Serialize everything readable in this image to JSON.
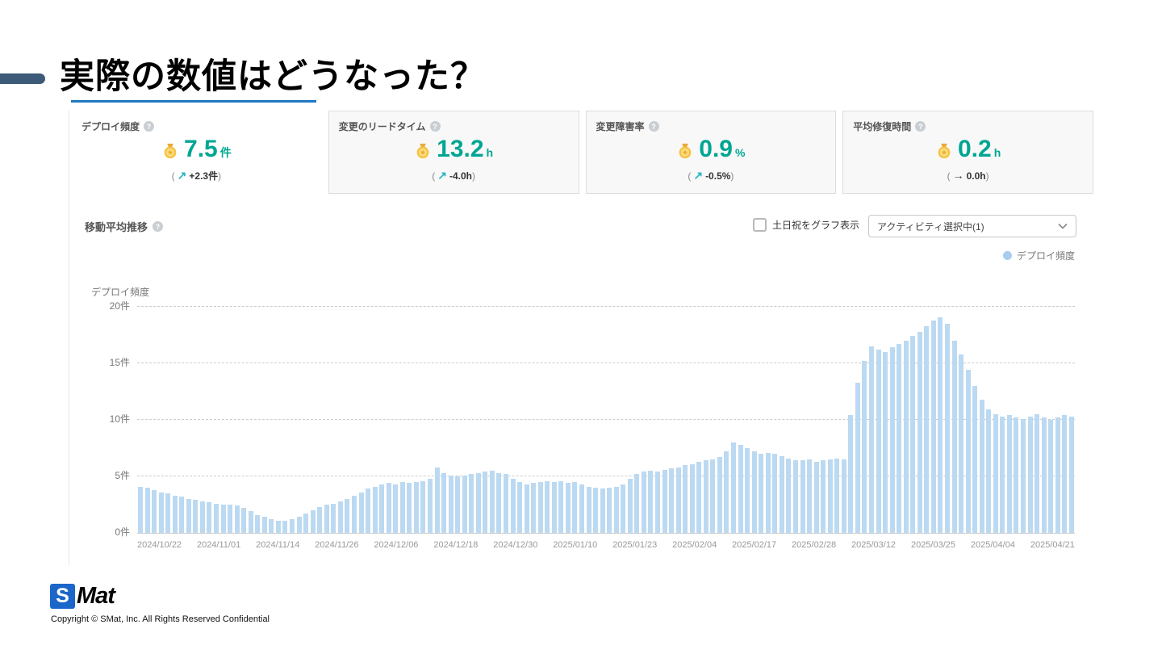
{
  "slide": {
    "title": "実際の数値はどうなった？"
  },
  "glyphs": {
    "help": "?",
    "arrow_up": "↗",
    "arrow_flat": "→"
  },
  "metrics": [
    {
      "label": "デプロイ頻度",
      "value": "7.5",
      "unit": "件",
      "delta": "+2.3件",
      "trend": "up",
      "arrow": "↗",
      "open_paren": "(",
      "close_paren": ")"
    },
    {
      "label": "変更のリードタイム",
      "value": "13.2",
      "unit": "h",
      "delta": "-4.0h",
      "trend": "up",
      "arrow": "↗",
      "open_paren": "(",
      "close_paren": ")"
    },
    {
      "label": "変更障害率",
      "value": "0.9",
      "unit": "%",
      "delta": "-0.5%",
      "trend": "up",
      "arrow": "↗",
      "open_paren": "(",
      "close_paren": ")"
    },
    {
      "label": "平均修復時間",
      "value": "0.2",
      "unit": "h",
      "delta": "0.0h",
      "trend": "flat",
      "arrow": "→",
      "open_paren": "(",
      "close_paren": ")"
    }
  ],
  "controls": {
    "section_title": "移動平均推移",
    "checkbox_label": "土日祝をグラフ表示",
    "checkbox_checked": false,
    "dropdown_value": "アクティビティ選択中(1)",
    "legend_label": "デプロイ頻度"
  },
  "chart_data": {
    "type": "bar",
    "title": "移動平均推移",
    "xlabel": "",
    "ylabel": "デプロイ頻度",
    "ylim": [
      0,
      20
    ],
    "grid": "dashed-horizontal",
    "legend_position": "top-right",
    "bar_color": "#bcd9f2",
    "y_ticks": [
      {
        "value": 0,
        "label": "0件"
      },
      {
        "value": 5,
        "label": "5件"
      },
      {
        "value": 10,
        "label": "10件"
      },
      {
        "value": 15,
        "label": "15件"
      },
      {
        "value": 20,
        "label": "20件"
      }
    ],
    "x_tick_labels": [
      "2024/10/22",
      "2024/11/01",
      "2024/11/14",
      "2024/11/26",
      "2024/12/06",
      "2024/12/18",
      "2024/12/30",
      "2025/01/10",
      "2025/01/23",
      "2025/02/04",
      "2025/02/17",
      "2025/02/28",
      "2025/03/12",
      "2025/03/25",
      "2025/04/04",
      "2025/04/21"
    ],
    "series": [
      {
        "name": "デプロイ頻度",
        "values": [
          4.1,
          4.0,
          3.8,
          3.6,
          3.5,
          3.3,
          3.2,
          3.0,
          2.9,
          2.8,
          2.7,
          2.6,
          2.5,
          2.5,
          2.4,
          2.2,
          1.9,
          1.6,
          1.4,
          1.2,
          1.1,
          1.1,
          1.2,
          1.4,
          1.7,
          2.0,
          2.3,
          2.5,
          2.6,
          2.8,
          3.0,
          3.3,
          3.6,
          3.9,
          4.1,
          4.3,
          4.4,
          4.3,
          4.5,
          4.4,
          4.5,
          4.6,
          4.8,
          5.8,
          5.3,
          5.1,
          5.0,
          5.1,
          5.2,
          5.3,
          5.4,
          5.5,
          5.3,
          5.2,
          4.8,
          4.5,
          4.3,
          4.4,
          4.5,
          4.6,
          4.5,
          4.6,
          4.4,
          4.5,
          4.3,
          4.1,
          4.0,
          3.9,
          4.0,
          4.1,
          4.3,
          4.8,
          5.2,
          5.4,
          5.5,
          5.4,
          5.6,
          5.7,
          5.8,
          6.0,
          6.1,
          6.3,
          6.4,
          6.5,
          6.7,
          7.2,
          8.0,
          7.8,
          7.5,
          7.2,
          7.0,
          7.1,
          7.0,
          6.8,
          6.6,
          6.4,
          6.4,
          6.5,
          6.3,
          6.4,
          6.5,
          6.6,
          6.5,
          10.4,
          13.3,
          15.2,
          16.5,
          16.2,
          16.0,
          16.4,
          16.7,
          17.0,
          17.4,
          17.8,
          18.3,
          18.8,
          19.1,
          18.5,
          17.0,
          15.8,
          14.4,
          13.0,
          11.8,
          10.9,
          10.5,
          10.3,
          10.4,
          10.2,
          10.1,
          10.3,
          10.5,
          10.2,
          10.0,
          10.2,
          10.4,
          10.3
        ]
      }
    ]
  },
  "footer": {
    "logo_s": "S",
    "logo_rest": "Mat",
    "copyright": "Copyright © SMat, Inc. All Rights Reserved Confidential"
  }
}
